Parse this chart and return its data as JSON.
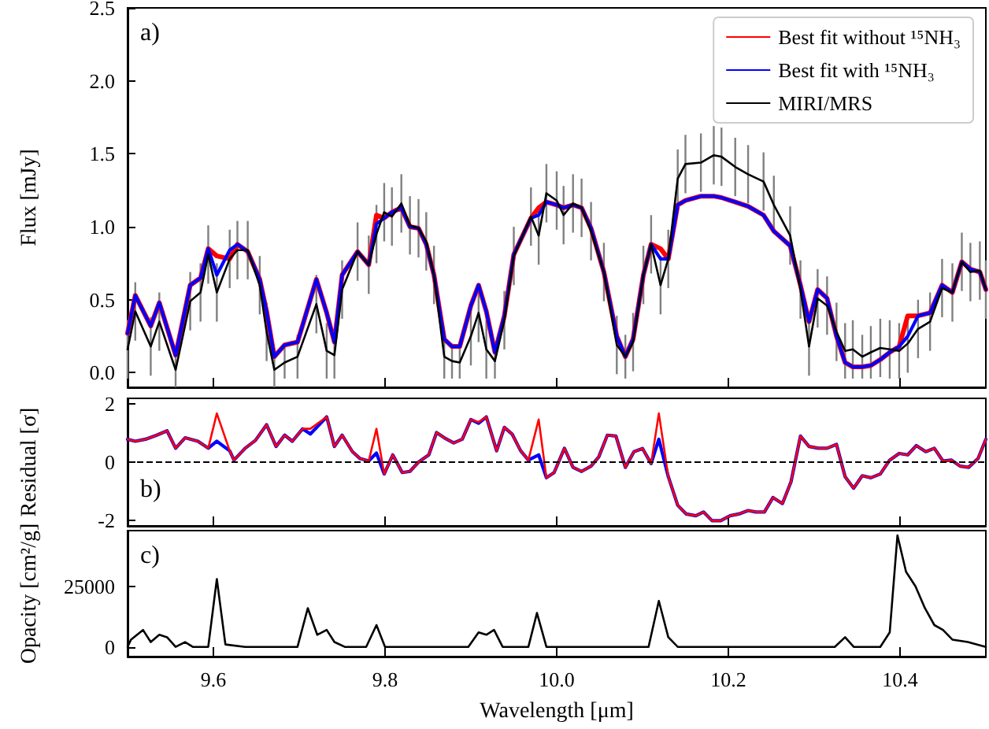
{
  "chart_data": [
    {
      "type": "line",
      "marker": "none",
      "legend": "top right",
      "tick_labels": "y",
      "ylabel": "Flux [mJy]",
      "annotations": [
        "a)"
      ],
      "xlim": [
        9.5,
        10.5
      ],
      "xticks": [
        9.6,
        9.8,
        10,
        10.2,
        10.4
      ],
      "ylim": [
        -0.1,
        2.5
      ],
      "yticks": [
        {
          "value": 0,
          "label": "0.0"
        },
        0.5,
        {
          "value": 1,
          "label": "1.0"
        },
        1.5,
        {
          "value": 2,
          "label": "2.0"
        },
        2.5
      ],
      "x": [
        9.5,
        9.509,
        9.527,
        9.537,
        9.556,
        9.573,
        9.585,
        9.594,
        9.604,
        9.619,
        9.628,
        9.64,
        9.654,
        9.662,
        9.671,
        9.683,
        9.698,
        9.72,
        9.732,
        9.741,
        9.75,
        9.768,
        9.781,
        9.79,
        9.799,
        9.808,
        9.819,
        9.829,
        9.839,
        9.848,
        9.857,
        9.869,
        9.878,
        9.887,
        9.9,
        9.909,
        9.918,
        9.928,
        9.939,
        9.95,
        9.97,
        9.979,
        9.988,
        10.0,
        10.008,
        10.019,
        10.029,
        10.04,
        10.055,
        10.07,
        10.08,
        10.089,
        10.101,
        10.11,
        10.121,
        10.13,
        10.141,
        10.15,
        10.168,
        10.183,
        10.192,
        10.208,
        10.223,
        10.241,
        10.253,
        10.272,
        10.284,
        10.294,
        10.304,
        10.315,
        10.326,
        10.336,
        10.345,
        10.356,
        10.366,
        10.377,
        10.388,
        10.399,
        10.409,
        10.421,
        10.435,
        10.449,
        10.461,
        10.472,
        10.482,
        10.493,
        10.5
      ],
      "series": [
        {
          "name": "Best fit without ¹⁵NH₃",
          "color": "#ff0000",
          "values": [
            0.27,
            0.53,
            0.32,
            0.48,
            0.12,
            0.6,
            0.65,
            0.85,
            0.8,
            0.78,
            0.88,
            0.83,
            0.64,
            0.42,
            0.11,
            0.19,
            0.21,
            0.64,
            0.41,
            0.21,
            0.67,
            0.83,
            0.74,
            1.08,
            1.06,
            1.1,
            1.13,
            1.0,
            0.99,
            0.88,
            0.67,
            0.23,
            0.18,
            0.18,
            0.46,
            0.6,
            0.42,
            0.14,
            0.39,
            0.81,
            1.06,
            1.13,
            1.17,
            1.15,
            1.13,
            1.15,
            1.13,
            0.99,
            0.69,
            0.25,
            0.11,
            0.23,
            0.67,
            0.88,
            0.85,
            0.78,
            1.15,
            1.18,
            1.21,
            1.21,
            1.2,
            1.17,
            1.14,
            1.08,
            0.97,
            0.87,
            0.6,
            0.35,
            0.57,
            0.51,
            0.25,
            0.07,
            0.04,
            0.04,
            0.05,
            0.09,
            0.14,
            0.18,
            0.39,
            0.39,
            0.41,
            0.6,
            0.55,
            0.76,
            0.71,
            0.69,
            0.57
          ]
        },
        {
          "name": "Best fit with ¹⁵NH₃",
          "color": "#0000ff",
          "values": [
            0.27,
            0.53,
            0.32,
            0.48,
            0.12,
            0.6,
            0.65,
            0.85,
            0.67,
            0.84,
            0.88,
            0.83,
            0.64,
            0.42,
            0.11,
            0.19,
            0.21,
            0.64,
            0.41,
            0.21,
            0.67,
            0.83,
            0.74,
            1.02,
            1.06,
            1.1,
            1.13,
            1.0,
            0.99,
            0.88,
            0.67,
            0.23,
            0.18,
            0.18,
            0.46,
            0.6,
            0.42,
            0.14,
            0.39,
            0.81,
            1.06,
            1.08,
            1.17,
            1.15,
            1.13,
            1.15,
            1.13,
            0.99,
            0.69,
            0.25,
            0.11,
            0.23,
            0.67,
            0.88,
            0.78,
            0.78,
            1.15,
            1.18,
            1.21,
            1.21,
            1.2,
            1.17,
            1.14,
            1.08,
            0.97,
            0.87,
            0.6,
            0.35,
            0.57,
            0.51,
            0.25,
            0.07,
            0.04,
            0.04,
            0.05,
            0.09,
            0.14,
            0.18,
            0.25,
            0.39,
            0.41,
            0.6,
            0.55,
            0.76,
            0.71,
            0.69,
            0.57
          ]
        },
        {
          "name": "MIRI/MRS",
          "color": "#000000",
          "values": [
            0.16,
            0.42,
            0.18,
            0.35,
            0.02,
            0.49,
            0.55,
            0.81,
            0.55,
            0.78,
            0.84,
            0.84,
            0.6,
            0.28,
            0.02,
            0.07,
            0.11,
            0.47,
            0.15,
            0.12,
            0.57,
            0.83,
            0.74,
            0.95,
            1.1,
            1.07,
            1.16,
            1.01,
            0.99,
            0.9,
            0.67,
            0.11,
            0.08,
            0.07,
            0.25,
            0.41,
            0.16,
            0.08,
            0.36,
            0.8,
            1.07,
            0.94,
            1.23,
            1.18,
            1.08,
            1.16,
            1.13,
            0.97,
            0.69,
            0.19,
            0.11,
            0.21,
            0.67,
            0.88,
            0.6,
            0.78,
            1.33,
            1.43,
            1.44,
            1.49,
            1.48,
            1.41,
            1.36,
            1.31,
            1.15,
            0.94,
            0.57,
            0.18,
            0.51,
            0.46,
            0.28,
            0.15,
            0.16,
            0.11,
            0.14,
            0.17,
            0.16,
            0.15,
            0.2,
            0.3,
            0.35,
            0.58,
            0.55,
            0.76,
            0.69,
            0.7,
            0.57
          ],
          "errors": [
            0.2,
            0.2,
            0.2,
            0.2,
            0.12,
            0.2,
            0.2,
            0.2,
            0.2,
            0.2,
            0.2,
            0.2,
            0.2,
            0.2,
            0.12,
            0.11,
            0.15,
            0.2,
            0.19,
            0.16,
            0.2,
            0.2,
            0.2,
            0.2,
            0.2,
            0.2,
            0.2,
            0.2,
            0.2,
            0.2,
            0.2,
            0.15,
            0.12,
            0.11,
            0.2,
            0.2,
            0.2,
            0.12,
            0.2,
            0.2,
            0.2,
            0.2,
            0.2,
            0.2,
            0.2,
            0.2,
            0.2,
            0.2,
            0.2,
            0.2,
            0.15,
            0.2,
            0.2,
            0.2,
            0.2,
            0.2,
            0.2,
            0.2,
            0.2,
            0.2,
            0.2,
            0.2,
            0.2,
            0.2,
            0.2,
            0.2,
            0.2,
            0.2,
            0.2,
            0.2,
            0.2,
            0.19,
            0.2,
            0.15,
            0.18,
            0.2,
            0.2,
            0.19,
            0.2,
            0.2,
            0.2,
            0.2,
            0.2,
            0.2,
            0.2,
            0.2,
            0.2
          ]
        }
      ]
    },
    {
      "type": "line",
      "marker": "none",
      "tick_labels": "y",
      "ylabel": "Residual [σ]",
      "annotations": [
        "b)"
      ],
      "xlim": [
        9.5,
        10.5
      ],
      "xticks": [
        9.6,
        9.8,
        10,
        10.2,
        10.4
      ],
      "ylim": [
        -2.2,
        2.2
      ],
      "yticks": [
        -2,
        0,
        2
      ],
      "ref_lines": [
        {
          "axis": "y",
          "value": 0,
          "color": "#000000",
          "line_style": "dashed"
        }
      ],
      "x": [
        9.5,
        9.509,
        9.521,
        9.534,
        9.546,
        9.556,
        9.567,
        9.582,
        9.594,
        9.604,
        9.619,
        9.624,
        9.637,
        9.649,
        9.662,
        9.673,
        9.683,
        9.692,
        9.704,
        9.713,
        9.732,
        9.741,
        9.75,
        9.762,
        9.771,
        9.781,
        9.79,
        9.799,
        9.809,
        9.82,
        9.829,
        9.839,
        9.851,
        9.86,
        9.869,
        9.88,
        9.89,
        9.9,
        9.909,
        9.918,
        9.93,
        9.939,
        9.948,
        9.958,
        9.967,
        9.979,
        9.988,
        9.997,
        10.009,
        10.019,
        10.029,
        10.04,
        10.049,
        10.059,
        10.069,
        10.08,
        10.09,
        10.1,
        10.11,
        10.119,
        10.13,
        10.141,
        10.151,
        10.162,
        10.171,
        10.181,
        10.191,
        10.202,
        10.212,
        10.223,
        10.232,
        10.242,
        10.252,
        10.263,
        10.273,
        10.284,
        10.294,
        10.305,
        10.315,
        10.326,
        10.336,
        10.346,
        10.356,
        10.366,
        10.377,
        10.388,
        10.399,
        10.409,
        10.419,
        10.43,
        10.44,
        10.45,
        10.46,
        10.47,
        10.48,
        10.491,
        10.5
      ],
      "series": [
        {
          "color": "#0000ff",
          "values": [
            0.79,
            0.72,
            0.79,
            0.93,
            1.08,
            0.48,
            0.84,
            0.72,
            0.48,
            0.72,
            0.39,
            0.07,
            0.48,
            0.75,
            1.29,
            0.54,
            0.93,
            0.72,
            1.15,
            0.97,
            1.56,
            0.54,
            0.93,
            0.36,
            0.12,
            0.04,
            0.31,
            -0.41,
            0.25,
            -0.36,
            -0.32,
            0.0,
            0.25,
            1.02,
            0.84,
            0.66,
            0.79,
            1.47,
            1.34,
            1.56,
            0.39,
            1.2,
            0.97,
            0.39,
            0.07,
            0.25,
            -0.54,
            -0.36,
            0.48,
            -0.18,
            -0.32,
            -0.14,
            0.18,
            0.93,
            0.9,
            -0.18,
            0.36,
            0.47,
            -0.05,
            0.79,
            -0.5,
            -1.49,
            -1.79,
            -1.85,
            -1.72,
            -2.02,
            -2.02,
            -1.85,
            -1.79,
            -1.67,
            -1.72,
            -1.72,
            -1.22,
            -1.43,
            -0.68,
            0.9,
            0.54,
            0.48,
            0.48,
            0.61,
            -0.5,
            -0.9,
            -0.47,
            -0.54,
            -0.41,
            0.07,
            0.3,
            0.25,
            0.57,
            0.36,
            0.48,
            0.04,
            0.07,
            -0.14,
            -0.18,
            0.13,
            0.79
          ]
        },
        {
          "color": "#ff0000",
          "values": [
            0.79,
            0.72,
            0.79,
            0.93,
            1.08,
            0.48,
            0.84,
            0.72,
            0.48,
            1.68,
            0.39,
            0.07,
            0.48,
            0.75,
            1.29,
            0.54,
            0.93,
            0.72,
            1.15,
            1.15,
            1.56,
            0.54,
            0.93,
            0.36,
            0.12,
            0.04,
            1.15,
            -0.41,
            0.25,
            -0.36,
            -0.32,
            0.0,
            0.25,
            1.02,
            0.84,
            0.66,
            0.79,
            1.47,
            1.38,
            1.56,
            0.39,
            1.2,
            0.97,
            0.39,
            0.07,
            1.47,
            -0.54,
            -0.36,
            0.48,
            -0.18,
            -0.32,
            -0.14,
            0.18,
            0.93,
            0.9,
            -0.18,
            0.36,
            0.47,
            -0.05,
            1.68,
            -0.5,
            -1.49,
            -1.79,
            -1.85,
            -1.72,
            -2.02,
            -2.02,
            -1.85,
            -1.79,
            -1.67,
            -1.72,
            -1.72,
            -1.22,
            -1.43,
            -0.68,
            0.9,
            0.54,
            0.48,
            0.48,
            0.61,
            -0.5,
            -0.9,
            -0.47,
            -0.54,
            -0.41,
            0.07,
            0.3,
            0.25,
            0.57,
            0.36,
            0.48,
            0.04,
            0.07,
            -0.14,
            -0.18,
            0.13,
            0.79
          ]
        }
      ]
    },
    {
      "type": "line",
      "marker": "none",
      "xlabel": "Wavelength [μm]",
      "ylabel": "Opacity [cm²/g]",
      "annotations": [
        "c)"
      ],
      "xlim": [
        9.5,
        10.5
      ],
      "xticks": [
        9.6,
        9.8,
        {
          "value": 10,
          "label": "10.0"
        },
        10.2,
        10.4
      ],
      "ylim": [
        -4000,
        48000
      ],
      "yticks": [
        0,
        25000
      ],
      "x": [
        9.5,
        9.504,
        9.518,
        9.527,
        9.537,
        9.546,
        9.556,
        9.567,
        9.576,
        9.594,
        9.604,
        9.614,
        9.637,
        9.698,
        9.71,
        9.721,
        9.732,
        9.741,
        9.753,
        9.778,
        9.79,
        9.8,
        9.851,
        9.897,
        9.909,
        9.918,
        9.927,
        9.937,
        9.967,
        9.977,
        9.988,
        10.009,
        10.107,
        10.119,
        10.13,
        10.141,
        10.324,
        10.336,
        10.346,
        10.377,
        10.388,
        10.397,
        10.407,
        10.418,
        10.429,
        10.44,
        10.45,
        10.461,
        10.479,
        10.5
      ],
      "series": [
        {
          "color": "#000000",
          "values": [
            0,
            3000,
            7000,
            2000,
            5000,
            4000,
            0,
            2000,
            0,
            0,
            28000,
            1000,
            0,
            0,
            16000,
            5000,
            7000,
            2000,
            0,
            0,
            9000,
            0,
            0,
            0,
            6000,
            5000,
            7000,
            0,
            0,
            14000,
            0,
            0,
            0,
            19000,
            4000,
            0,
            0,
            4000,
            0,
            0,
            6000,
            46000,
            31000,
            25000,
            16000,
            9000,
            7000,
            3000,
            2000,
            0
          ]
        }
      ]
    }
  ]
}
